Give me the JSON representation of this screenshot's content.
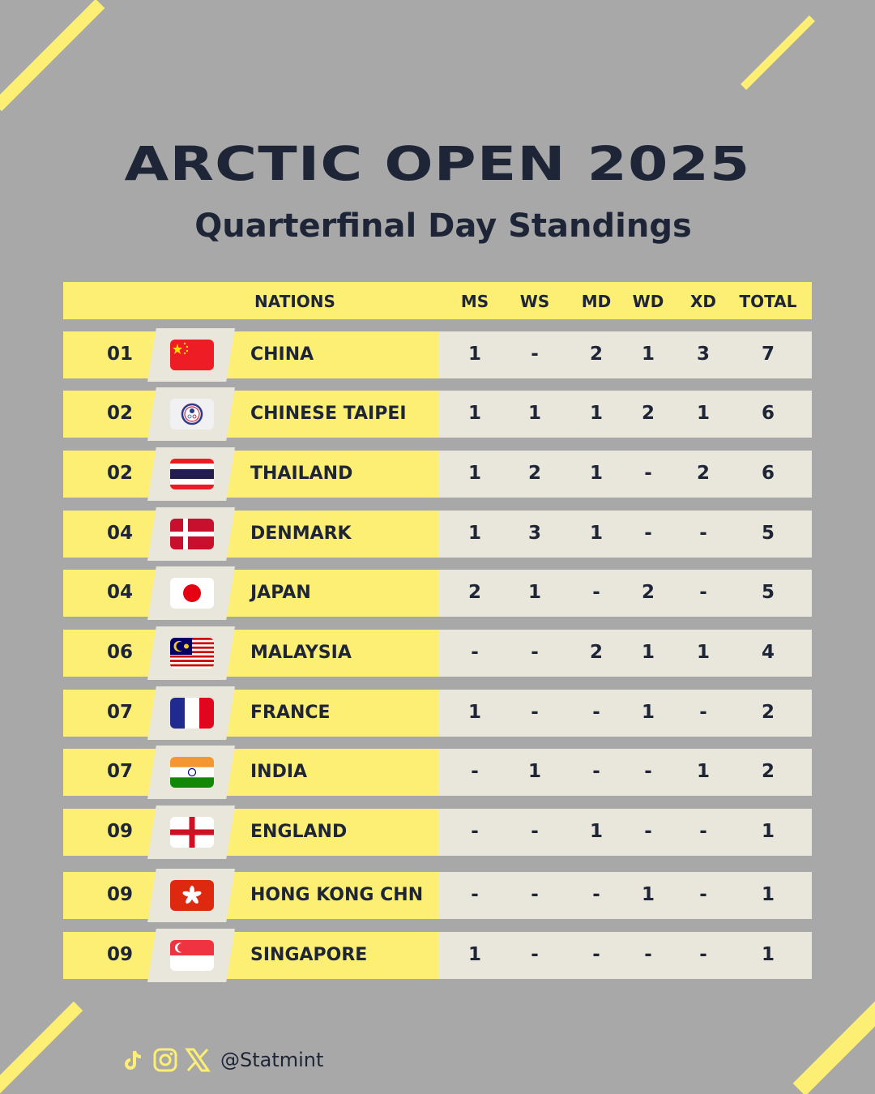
{
  "title": "ARCTIC OPEN 2025",
  "subtitle": "Quarterfinal Day Standings",
  "columns": {
    "nations": "NATIONS",
    "ms": "MS",
    "ws": "WS",
    "md": "MD",
    "wd": "WD",
    "xd": "XD",
    "total": "TOTAL"
  },
  "rows": [
    {
      "rank": "01",
      "flag": "china-flag",
      "nation": "CHINA",
      "ms": "1",
      "ws": "-",
      "md": "2",
      "wd": "1",
      "xd": "3",
      "total": "7"
    },
    {
      "rank": "02",
      "flag": "chinese-taipei-flag",
      "nation": "CHINESE TAIPEI",
      "ms": "1",
      "ws": "1",
      "md": "1",
      "wd": "2",
      "xd": "1",
      "total": "6"
    },
    {
      "rank": "02",
      "flag": "thailand-flag",
      "nation": "THAILAND",
      "ms": "1",
      "ws": "2",
      "md": "1",
      "wd": "-",
      "xd": "2",
      "total": "6"
    },
    {
      "rank": "04",
      "flag": "denmark-flag",
      "nation": "DENMARK",
      "ms": "1",
      "ws": "3",
      "md": "1",
      "wd": "-",
      "xd": "-",
      "total": "5"
    },
    {
      "rank": "04",
      "flag": "japan-flag",
      "nation": "JAPAN",
      "ms": "2",
      "ws": "1",
      "md": "-",
      "wd": "2",
      "xd": "-",
      "total": "5"
    },
    {
      "rank": "06",
      "flag": "malaysia-flag",
      "nation": "MALAYSIA",
      "ms": "-",
      "ws": "-",
      "md": "2",
      "wd": "1",
      "xd": "1",
      "total": "4"
    },
    {
      "rank": "07",
      "flag": "france-flag",
      "nation": "FRANCE",
      "ms": "1",
      "ws": "-",
      "md": "-",
      "wd": "1",
      "xd": "-",
      "total": "2"
    },
    {
      "rank": "07",
      "flag": "india-flag",
      "nation": "INDIA",
      "ms": "-",
      "ws": "1",
      "md": "-",
      "wd": "-",
      "xd": "1",
      "total": "2"
    },
    {
      "rank": "09",
      "flag": "england-flag",
      "nation": "ENGLAND",
      "ms": "-",
      "ws": "-",
      "md": "1",
      "wd": "-",
      "xd": "-",
      "total": "1"
    },
    {
      "rank": "09",
      "flag": "hong-kong-flag",
      "nation": "HONG KONG CHN",
      "ms": "-",
      "ws": "-",
      "md": "-",
      "wd": "1",
      "xd": "-",
      "total": "1"
    },
    {
      "rank": "09",
      "flag": "singapore-flag",
      "nation": "SINGAPORE",
      "ms": "1",
      "ws": "-",
      "md": "-",
      "wd": "-",
      "xd": "-",
      "total": "1"
    }
  ],
  "footer": {
    "handle": "@Statmint",
    "icons": [
      "tiktok-icon",
      "instagram-icon",
      "x-icon"
    ]
  },
  "colors": {
    "background": "#a8a8a8",
    "yellow": "#fdee74",
    "cell": "#e9e6dc",
    "text": "#1e2536"
  }
}
